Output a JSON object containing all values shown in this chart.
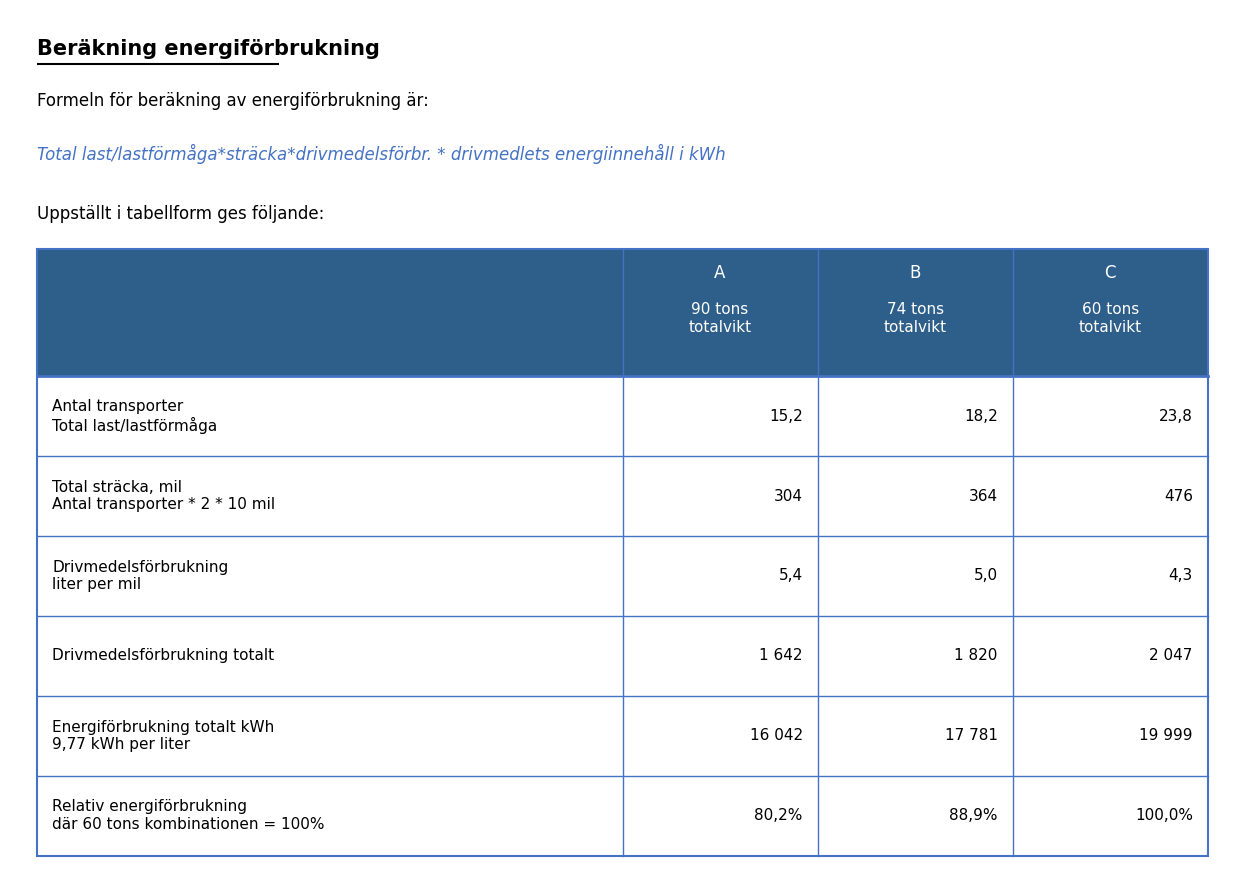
{
  "title": "Beräkning energiförbrukning",
  "subtitle1": "Formeln för beräkning av energiförbrukning är:",
  "formula": "Total last/lastförmåga*sträcka*drivmedelsförbr. * drivmedlets energiinnehåll i kWh",
  "subtitle2": "Uppställt i tabellform ges följande:",
  "header_bg": "#2E5F8A",
  "header_text_color": "#FFFFFF",
  "col_headers": [
    "A",
    "B",
    "C"
  ],
  "col_subheaders": [
    "90 tons\ntotalvikt",
    "74 tons\ntotalvikt",
    "60 tons\ntotalvikt"
  ],
  "row_labels": [
    "Antal transporter\nTotal last/lastförmåga",
    "Total sträcka, mil\nAntal transporter * 2 * 10 mil",
    "Drivmedelsförbrukning\nliter per mil",
    "Drivmedelsförbrukning totalt",
    "Energiförbrukning totalt kWh\n9,77 kWh per liter",
    "Relativ energiförbrukning\ndär 60 tons kombinationen = 100%"
  ],
  "data": [
    [
      "15,2",
      "18,2",
      "23,8"
    ],
    [
      "304",
      "364",
      "476"
    ],
    [
      "5,4",
      "5,0",
      "4,3"
    ],
    [
      "1 642",
      "1 820",
      "2 047"
    ],
    [
      "16 042",
      "17 781",
      "19 999"
    ],
    [
      "80,2%",
      "88,9%",
      "100,0%"
    ]
  ],
  "border_color": "#4472C4",
  "title_color": "#000000",
  "formula_color": "#4472C4",
  "text_color": "#000000",
  "figsize": [
    12.45,
    8.73
  ],
  "dpi": 100
}
